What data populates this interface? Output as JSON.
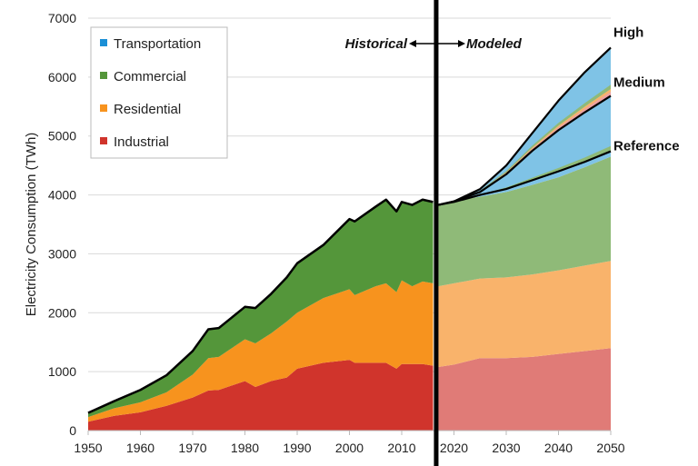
{
  "chart_data": {
    "type": "area",
    "title": "",
    "ylabel": "Electricity Consumption (TWh)",
    "xlabel": "",
    "xlim": [
      1950,
      2050
    ],
    "ylim": [
      0,
      7000
    ],
    "xticks": [
      1950,
      1960,
      1970,
      1980,
      1990,
      2000,
      2010,
      2020,
      2030,
      2040,
      2050
    ],
    "yticks": [
      0,
      1000,
      2000,
      3000,
      4000,
      5000,
      6000,
      7000
    ],
    "grid": "horizontal",
    "legend_position": "top-left",
    "legend": [
      {
        "label": "Transportation",
        "color": "#1b8fd6"
      },
      {
        "label": "Commercial",
        "color": "#54963a"
      },
      {
        "label": "Residential",
        "color": "#f7931e"
      },
      {
        "label": "Industrial",
        "color": "#d0342c"
      }
    ],
    "divider_year": 2016.6,
    "annotations": {
      "historical": "Historical",
      "modeled": "Modeled"
    },
    "historical": {
      "x": [
        1950,
        1955,
        1960,
        1965,
        1970,
        1973,
        1975,
        1980,
        1982,
        1985,
        1988,
        1990,
        1995,
        2000,
        2001,
        2005,
        2007,
        2009,
        2010,
        2012,
        2014,
        2016
      ],
      "industrial": [
        150,
        250,
        310,
        420,
        560,
        680,
        690,
        840,
        740,
        840,
        900,
        1050,
        1150,
        1200,
        1150,
        1150,
        1150,
        1050,
        1130,
        1130,
        1130,
        1100
      ],
      "industrial_plus_residential": [
        230,
        380,
        480,
        650,
        950,
        1230,
        1250,
        1550,
        1480,
        1650,
        1850,
        2000,
        2250,
        2400,
        2300,
        2450,
        2500,
        2350,
        2550,
        2450,
        2530,
        2500
      ],
      "total": [
        300,
        500,
        690,
        940,
        1350,
        1720,
        1740,
        2100,
        2080,
        2320,
        2600,
        2840,
        3150,
        3590,
        3550,
        3800,
        3920,
        3720,
        3880,
        3830,
        3920,
        3880
      ]
    },
    "modeled": {
      "x": [
        2017,
        2020,
        2025,
        2030,
        2035,
        2040,
        2045,
        2050
      ],
      "industrial": [
        1080,
        1120,
        1230,
        1230,
        1250,
        1300,
        1350,
        1400
      ],
      "industrial_plus_residential": [
        2450,
        2500,
        2580,
        2600,
        2650,
        2720,
        2800,
        2880
      ],
      "industrial_residential_commercial": [
        3830,
        3900,
        3970,
        4050,
        4170,
        4300,
        4470,
        4650
      ],
      "scenarios": [
        {
          "name": "Reference",
          "values": [
            3830,
            3880,
            4000,
            4100,
            4250,
            4400,
            4560,
            4740
          ]
        },
        {
          "name": "Medium",
          "values": [
            3830,
            3890,
            4050,
            4350,
            4750,
            5100,
            5400,
            5680
          ]
        },
        {
          "name": "High",
          "values": [
            3830,
            3890,
            4100,
            4500,
            5050,
            5600,
            6080,
            6500
          ]
        }
      ]
    },
    "colors": {
      "industrial": "#d0342c",
      "residential": "#f7931e",
      "commercial": "#54963a",
      "industrial_modeled": "#e07b77",
      "residential_modeled": "#f9b36b",
      "commercial_modeled": "#8fba78",
      "transportation_modeled": "#7fc3e6"
    }
  }
}
